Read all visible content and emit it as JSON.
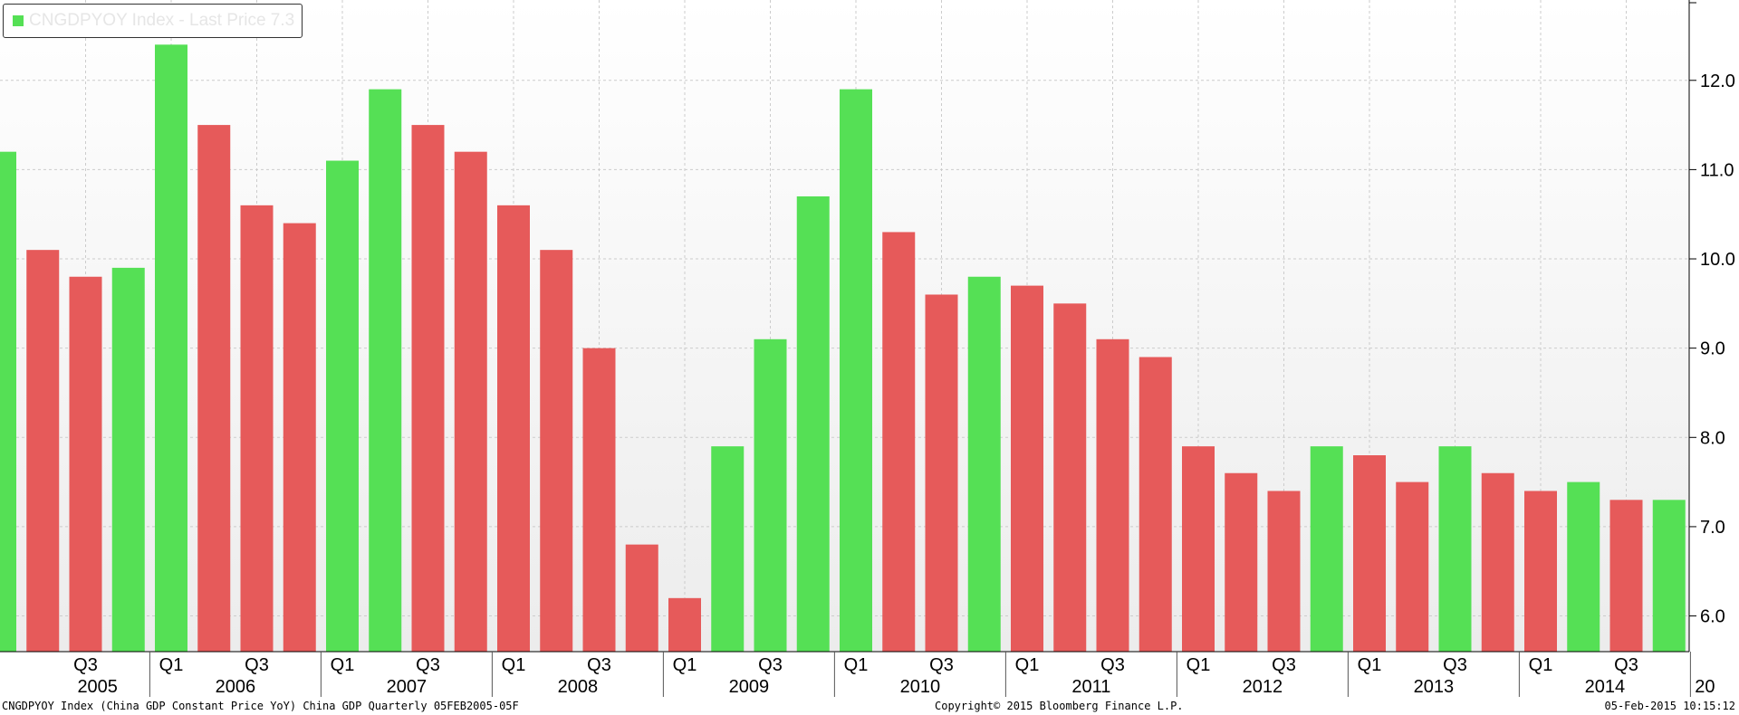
{
  "legend": {
    "label": "CNGDPYOY Index - Last Price 7.3",
    "swatch_color": "#55e055"
  },
  "footer": {
    "left": "CNGDPYOY Index (China GDP Constant Price YoY) China GDP  Quarterly 05FEB2005-05F",
    "center": "Copyright© 2015 Bloomberg Finance L.P.",
    "right": "05-Feb-2015 10:15:12"
  },
  "colors": {
    "up": "#55e055",
    "down": "#e65a5a",
    "grid": "#cccccc",
    "axis": "#000000"
  },
  "chart_data": {
    "type": "bar",
    "title": "",
    "xlabel": "",
    "ylabel": "",
    "ylim": [
      5.6,
      12.9
    ],
    "y_ticks": [
      "6.0",
      "7.0",
      "8.0",
      "9.0",
      "10.0",
      "11.0",
      "12.0"
    ],
    "grid": true,
    "categories": [
      "2005Q1",
      "2005Q2",
      "2005Q3",
      "2005Q4",
      "2006Q1",
      "2006Q2",
      "2006Q3",
      "2006Q4",
      "2007Q1",
      "2007Q2",
      "2007Q3",
      "2007Q4",
      "2008Q1",
      "2008Q2",
      "2008Q3",
      "2008Q4",
      "2009Q1",
      "2009Q2",
      "2009Q3",
      "2009Q4",
      "2010Q1",
      "2010Q2",
      "2010Q3",
      "2010Q4",
      "2011Q1",
      "2011Q2",
      "2011Q3",
      "2011Q4",
      "2012Q1",
      "2012Q2",
      "2012Q3",
      "2012Q4",
      "2013Q1",
      "2013Q2",
      "2013Q3",
      "2013Q4",
      "2014Q1",
      "2014Q2",
      "2014Q3",
      "2014Q4"
    ],
    "values": [
      11.2,
      10.1,
      9.8,
      9.9,
      12.4,
      11.5,
      10.6,
      10.4,
      11.1,
      11.9,
      11.5,
      11.2,
      10.6,
      10.1,
      9.0,
      6.8,
      6.2,
      7.9,
      9.1,
      10.7,
      11.9,
      10.3,
      9.6,
      9.8,
      9.7,
      9.5,
      9.1,
      8.9,
      7.9,
      7.6,
      7.4,
      7.9,
      7.8,
      7.5,
      7.9,
      7.6,
      7.4,
      7.5,
      7.3,
      7.3
    ],
    "x_quarter_labels": [
      {
        "index": 2,
        "label": "Q3"
      },
      {
        "index": 4,
        "label": "Q1"
      },
      {
        "index": 6,
        "label": "Q3"
      },
      {
        "index": 8,
        "label": "Q1"
      },
      {
        "index": 10,
        "label": "Q3"
      },
      {
        "index": 12,
        "label": "Q1"
      },
      {
        "index": 14,
        "label": "Q3"
      },
      {
        "index": 16,
        "label": "Q1"
      },
      {
        "index": 18,
        "label": "Q3"
      },
      {
        "index": 20,
        "label": "Q1"
      },
      {
        "index": 22,
        "label": "Q3"
      },
      {
        "index": 24,
        "label": "Q1"
      },
      {
        "index": 26,
        "label": "Q3"
      },
      {
        "index": 28,
        "label": "Q1"
      },
      {
        "index": 30,
        "label": "Q3"
      },
      {
        "index": 32,
        "label": "Q1"
      },
      {
        "index": 34,
        "label": "Q3"
      },
      {
        "index": 36,
        "label": "Q1"
      },
      {
        "index": 38,
        "label": "Q3"
      }
    ],
    "x_year_labels": [
      "2005",
      "2006",
      "2007",
      "2008",
      "2009",
      "2010",
      "2011",
      "2012",
      "2013",
      "2014",
      "20"
    ]
  }
}
